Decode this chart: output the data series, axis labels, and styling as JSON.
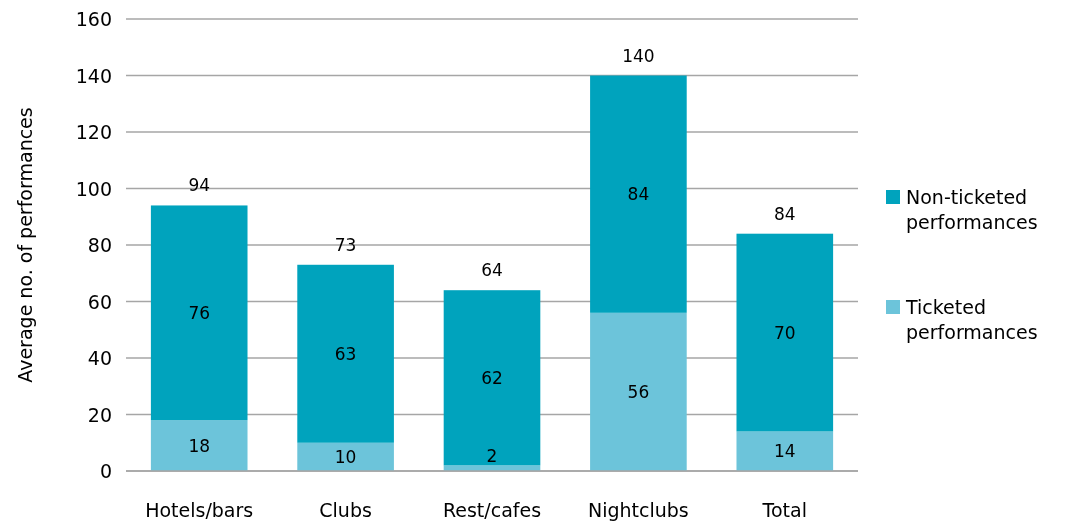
{
  "chart_data": {
    "type": "bar",
    "stacked": true,
    "ylabel": "Average no. of performances",
    "categories": [
      "Hotels/bars",
      "Clubs",
      "Rest/cafes",
      "Nightclubs",
      "Total"
    ],
    "series": [
      {
        "name": "Ticketed performances",
        "color": "#6cc4da",
        "values": [
          18,
          10,
          2,
          56,
          14
        ]
      },
      {
        "name": "Non-ticketed performances",
        "color": "#00a3bd",
        "values": [
          76,
          63,
          62,
          84,
          70
        ]
      }
    ],
    "totals": [
      "94",
      "73",
      "64",
      "140",
      "84"
    ],
    "data_labels": true,
    "ylim": [
      0,
      160
    ],
    "yticks": [
      0,
      20,
      40,
      60,
      80,
      100,
      120,
      140,
      160
    ],
    "grid": "y",
    "legend": "right"
  }
}
